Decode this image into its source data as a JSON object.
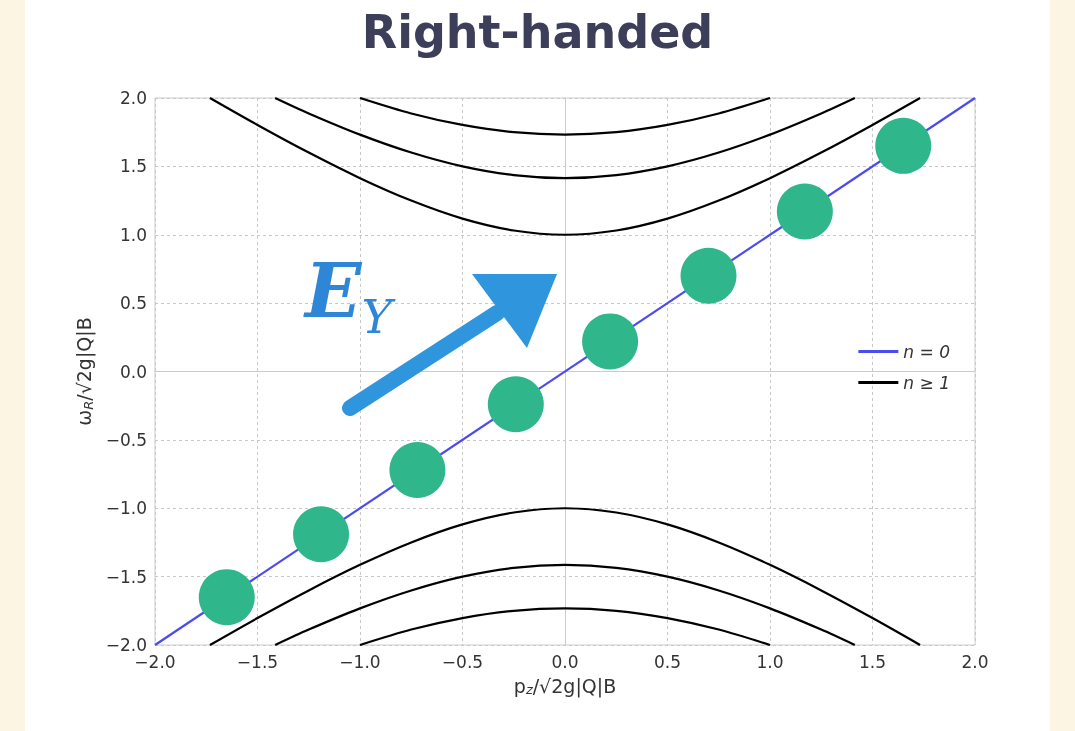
{
  "chart_data": {
    "type": "line",
    "title": "Right-handed",
    "xlabel": "p$_{z}$/√2g|Q|B",
    "ylabel": "ω$_{R}$/√2g|Q|B",
    "annotations": [
      "E$_{Y}$"
    ],
    "xlim": [
      -2,
      2
    ],
    "ylim": [
      -2,
      2
    ],
    "xticks": [
      {
        "value": -2,
        "label": "−2.0"
      },
      {
        "value": -1.5,
        "label": "−1.5"
      },
      {
        "value": -1,
        "label": "−1.0"
      },
      {
        "value": -0.5,
        "label": "−0.5"
      },
      {
        "value": 0,
        "label": "0.0"
      },
      {
        "value": 0.5,
        "label": "0.5"
      },
      {
        "value": 1,
        "label": "1.0"
      },
      {
        "value": 1.5,
        "label": "1.5"
      },
      {
        "value": 2,
        "label": "2.0"
      }
    ],
    "yticks": [
      {
        "value": -2,
        "label": "−2.0"
      },
      {
        "value": -1.5,
        "label": "−1.5"
      },
      {
        "value": -1,
        "label": "−1.0"
      },
      {
        "value": -0.5,
        "label": "−0.5"
      },
      {
        "value": 0,
        "label": "0.0"
      },
      {
        "value": 0.5,
        "label": "0.5"
      },
      {
        "value": 1,
        "label": "1.0"
      },
      {
        "value": 1.5,
        "label": "1.5"
      },
      {
        "value": 2,
        "label": "2.0"
      }
    ],
    "grid": true,
    "legend": "right",
    "marker": "none",
    "line_style": "solid",
    "series": [
      {
        "name": "n = 0",
        "color": "#4b4bf0",
        "x": [
          -2,
          2
        ],
        "values": [
          -2,
          2
        ]
      },
      {
        "name": "n ≥ 1",
        "color": "#000000",
        "x": [
          -1.732,
          -1.5,
          -1.25,
          -1,
          -0.75,
          -0.5,
          -0.25,
          0,
          0.25,
          0.5,
          0.75,
          1,
          1.25,
          1.5,
          1.732
        ],
        "values": [
          2,
          1.803,
          1.601,
          1.414,
          1.25,
          1.118,
          1.031,
          1,
          1.031,
          1.118,
          1.25,
          1.414,
          1.601,
          1.803,
          2
        ]
      },
      {
        "color": "#000000",
        "x": [
          -1.414,
          -1.25,
          -1,
          -0.75,
          -0.5,
          -0.25,
          0,
          0.25,
          0.5,
          0.75,
          1,
          1.25,
          1.414
        ],
        "values": [
          2,
          1.887,
          1.732,
          1.601,
          1.5,
          1.436,
          1.414,
          1.436,
          1.5,
          1.601,
          1.732,
          1.887,
          2
        ]
      },
      {
        "color": "#000000",
        "x": [
          -1,
          -0.75,
          -0.5,
          -0.25,
          0,
          0.25,
          0.5,
          0.75,
          1
        ],
        "values": [
          2,
          1.887,
          1.803,
          1.75,
          1.732,
          1.75,
          1.803,
          1.887,
          2
        ]
      },
      {
        "color": "#000000",
        "x": [
          -1.732,
          -1.5,
          -1.25,
          -1,
          -0.75,
          -0.5,
          -0.25,
          0,
          0.25,
          0.5,
          0.75,
          1,
          1.25,
          1.5,
          1.732
        ],
        "values": [
          -2,
          -1.803,
          -1.601,
          -1.414,
          -1.25,
          -1.118,
          -1.031,
          -1,
          -1.031,
          -1.118,
          -1.25,
          -1.414,
          -1.601,
          -1.803,
          -2
        ]
      },
      {
        "color": "#000000",
        "x": [
          -1.414,
          -1.25,
          -1,
          -0.75,
          -0.5,
          -0.25,
          0,
          0.25,
          0.5,
          0.75,
          1,
          1.25,
          1.414
        ],
        "values": [
          -2,
          -1.887,
          -1.732,
          -1.601,
          -1.5,
          -1.436,
          -1.414,
          -1.436,
          -1.5,
          -1.601,
          -1.732,
          -1.887,
          -2
        ]
      },
      {
        "color": "#000000",
        "x": [
          -1,
          -0.75,
          -0.5,
          -0.25,
          0,
          0.25,
          0.5,
          0.75,
          1
        ],
        "values": [
          -2,
          -1.887,
          -1.803,
          -1.75,
          -1.732,
          -1.75,
          -1.803,
          -1.887,
          -2
        ]
      },
      {
        "type": "scatter",
        "marker": "circle",
        "color": "#2fb68a",
        "x": [
          -1.65,
          -1.19,
          -0.72,
          -0.24,
          0.22
        ],
        "values": [
          -1.65,
          -1.19,
          -0.72,
          -0.24,
          0.22
        ]
      },
      {
        "type": "scatter",
        "marker": "circle",
        "color": "#2fb68a",
        "x": [
          0.7,
          1.17,
          1.65
        ],
        "values": [
          0.7,
          1.17,
          1.65
        ]
      }
    ]
  }
}
